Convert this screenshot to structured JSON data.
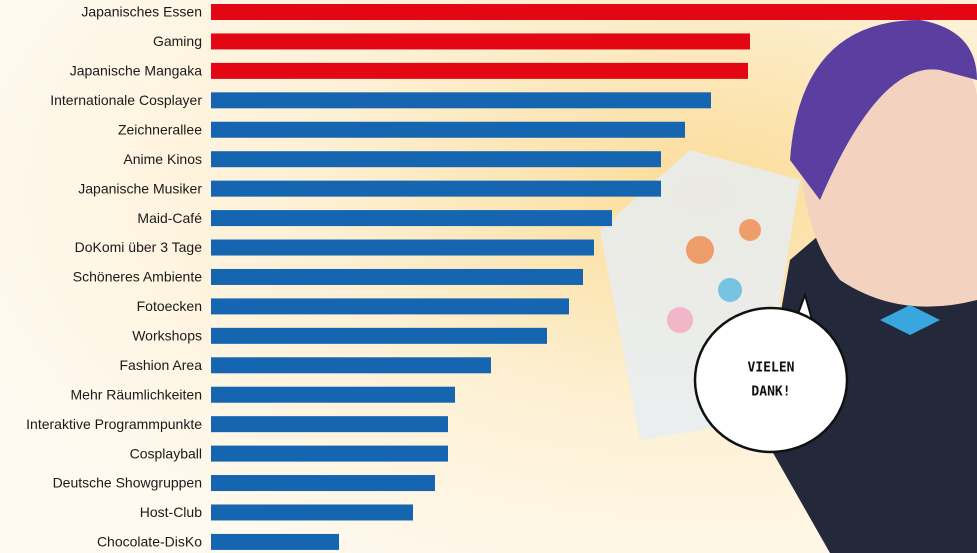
{
  "chart_data": {
    "type": "barh",
    "categories": [
      "Japanisches Essen",
      "Gaming",
      "Japanische Mangaka",
      "Internationale Cosplayer",
      "Zeichnerallee",
      "Anime Kinos",
      "Japanische Musiker",
      "Maid-Café",
      "DoKomi über 3 Tage",
      "Schöneres Ambiente",
      "Fotoecken",
      "Workshops",
      "Fashion Area",
      "Mehr Räumlichkeiten",
      "Interaktive Programmpunkte",
      "Cosplayball",
      "Deutsche Showgruppen",
      "Host-Club",
      "Chocolate-DisKo"
    ],
    "values": [
      766,
      539,
      537,
      500,
      474,
      450,
      450,
      401,
      383,
      372,
      358,
      336,
      280,
      244,
      237,
      237,
      224,
      202,
      128
    ],
    "colors": [
      "#e30613",
      "#e30613",
      "#e30613",
      "#1565b0",
      "#1565b0",
      "#1565b0",
      "#1565b0",
      "#1565b0",
      "#1565b0",
      "#1565b0",
      "#1565b0",
      "#1565b0",
      "#1565b0",
      "#1565b0",
      "#1565b0",
      "#1565b0",
      "#1565b0",
      "#1565b0",
      "#1565b0"
    ],
    "xlim": [
      0,
      766
    ],
    "annotation": [
      "VIELEN",
      "DANK!"
    ]
  }
}
